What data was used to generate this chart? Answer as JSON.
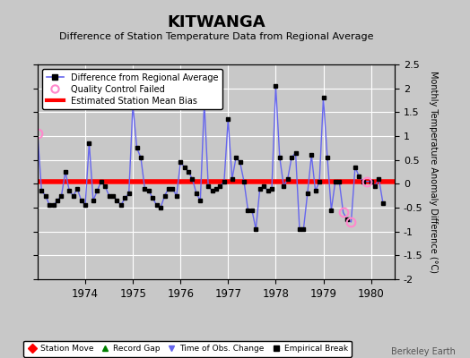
{
  "title": "KITWANGA",
  "subtitle": "Difference of Station Temperature Data from Regional Average",
  "ylabel": "Monthly Temperature Anomaly Difference (°C)",
  "xlim": [
    1973.0,
    1980.5
  ],
  "ylim": [
    -2.0,
    2.5
  ],
  "yticks": [
    -2.0,
    -1.5,
    -1.0,
    -0.5,
    0.0,
    0.5,
    1.0,
    1.5,
    2.0,
    2.5
  ],
  "xticks": [
    1974,
    1975,
    1976,
    1977,
    1978,
    1979,
    1980
  ],
  "mean_bias": 0.05,
  "outer_bg": "#c8c8c8",
  "plot_bg_color": "#c8c8c8",
  "line_color": "#6666ee",
  "bias_color": "#ff0000",
  "qc_color": "#ff88cc",
  "watermark": "Berkeley Earth",
  "time_series": [
    1973.0,
    1973.0833,
    1973.1667,
    1973.25,
    1973.3333,
    1973.4167,
    1973.5,
    1973.5833,
    1973.6667,
    1973.75,
    1973.8333,
    1973.9167,
    1974.0,
    1974.0833,
    1974.1667,
    1974.25,
    1974.3333,
    1974.4167,
    1974.5,
    1974.5833,
    1974.6667,
    1974.75,
    1974.8333,
    1974.9167,
    1975.0,
    1975.0833,
    1975.1667,
    1975.25,
    1975.3333,
    1975.4167,
    1975.5,
    1975.5833,
    1975.6667,
    1975.75,
    1975.8333,
    1975.9167,
    1976.0,
    1976.0833,
    1976.1667,
    1976.25,
    1976.3333,
    1976.4167,
    1976.5,
    1976.5833,
    1976.6667,
    1976.75,
    1976.8333,
    1976.9167,
    1977.0,
    1977.0833,
    1977.1667,
    1977.25,
    1977.3333,
    1977.4167,
    1977.5,
    1977.5833,
    1977.6667,
    1977.75,
    1977.8333,
    1977.9167,
    1978.0,
    1978.0833,
    1978.1667,
    1978.25,
    1978.3333,
    1978.4167,
    1978.5,
    1978.5833,
    1978.6667,
    1978.75,
    1978.8333,
    1978.9167,
    1979.0,
    1979.0833,
    1979.1667,
    1979.25,
    1979.3333,
    1979.4167,
    1979.5,
    1979.5833,
    1979.6667,
    1979.75,
    1979.8333,
    1979.9167,
    1980.0,
    1980.0833,
    1980.1667,
    1980.25
  ],
  "values": [
    1.05,
    -0.15,
    -0.25,
    -0.45,
    -0.45,
    -0.35,
    -0.25,
    0.25,
    -0.15,
    -0.25,
    -0.1,
    -0.35,
    -0.45,
    0.85,
    -0.35,
    -0.15,
    0.05,
    -0.05,
    -0.25,
    -0.25,
    -0.35,
    -0.45,
    -0.3,
    -0.2,
    1.65,
    0.75,
    0.55,
    -0.1,
    -0.15,
    -0.3,
    -0.45,
    -0.5,
    -0.25,
    -0.1,
    -0.1,
    -0.25,
    0.45,
    0.35,
    0.25,
    0.1,
    -0.2,
    -0.35,
    1.7,
    -0.05,
    -0.15,
    -0.1,
    -0.05,
    0.05,
    1.35,
    0.1,
    0.55,
    0.45,
    0.05,
    -0.55,
    -0.55,
    -0.95,
    -0.1,
    -0.05,
    -0.15,
    -0.1,
    2.05,
    0.55,
    -0.05,
    0.1,
    0.55,
    0.65,
    -0.95,
    -0.95,
    -0.2,
    0.6,
    -0.15,
    0.05,
    1.8,
    0.55,
    -0.55,
    0.05,
    0.05,
    -0.6,
    -0.75,
    -0.8,
    0.35,
    0.15,
    0.05,
    0.05,
    0.05,
    -0.05,
    0.1,
    -0.4
  ],
  "qc_failed_indices": [
    0,
    77,
    79,
    83
  ],
  "legend1_label": "Difference from Regional Average",
  "legend2_label": "Quality Control Failed",
  "legend3_label": "Estimated Station Mean Bias",
  "legend4_label": "Station Move",
  "legend5_label": "Record Gap",
  "legend6_label": "Time of Obs. Change",
  "legend7_label": "Empirical Break"
}
